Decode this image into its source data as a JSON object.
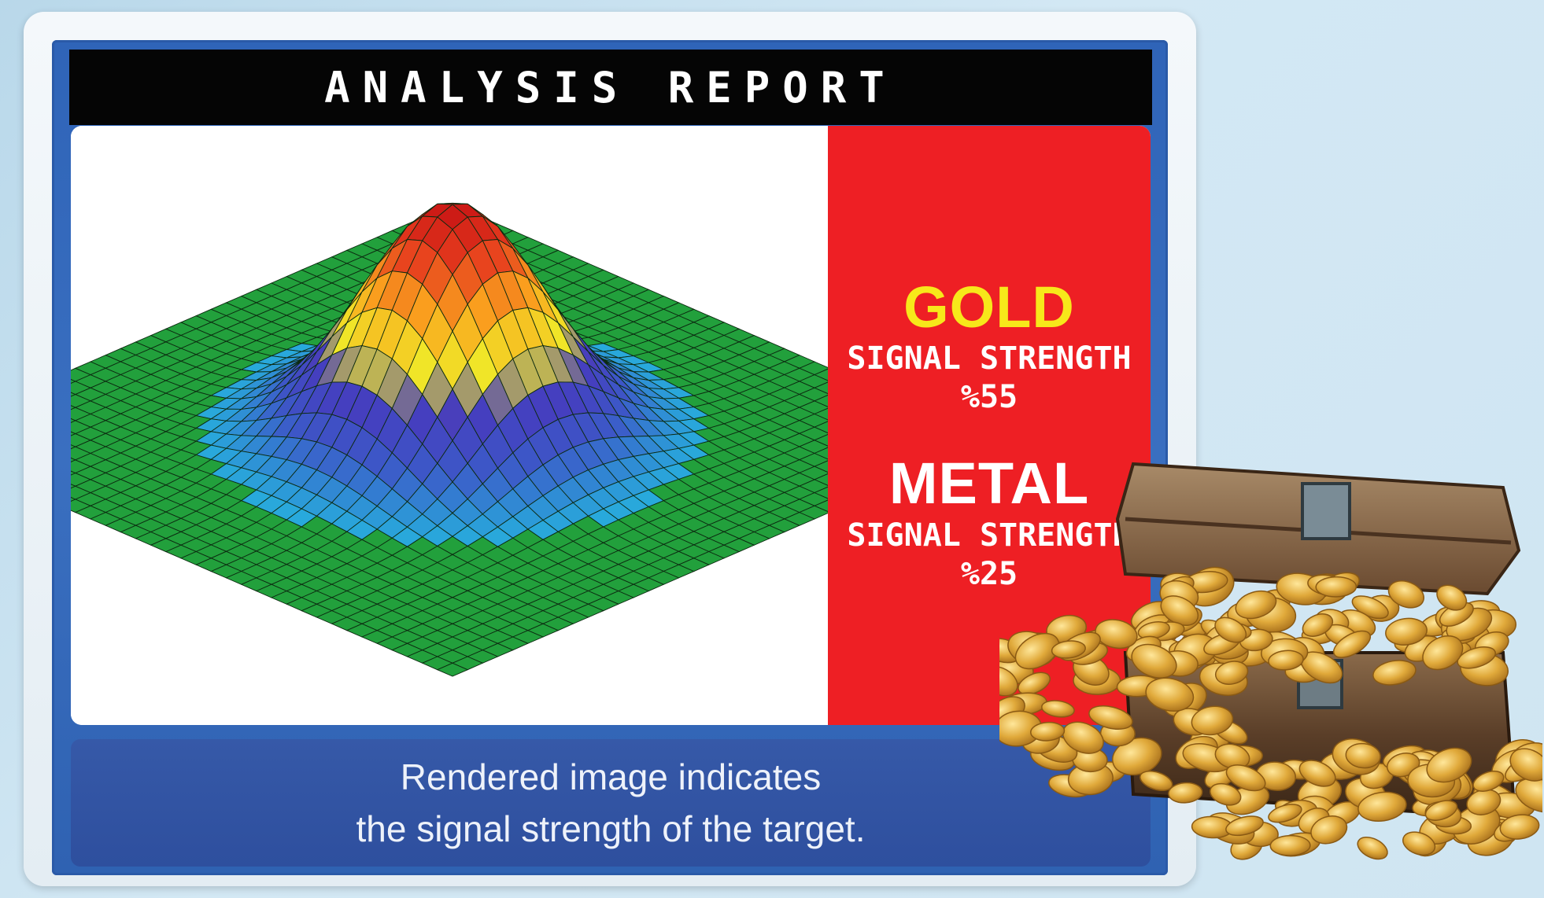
{
  "report": {
    "title": "ANALYSIS REPORT"
  },
  "readout": {
    "gold": {
      "name": "GOLD",
      "signal_label": "SIGNAL STRENGTH",
      "signal_value": "%55"
    },
    "metal": {
      "name": "METAL",
      "signal_label": "SIGNAL STRENGTH",
      "signal_value": "%25"
    }
  },
  "caption": {
    "line1": "Rendered image indicates",
    "line2": "the signal strength of the target."
  },
  "colors": {
    "frame_blue": "#2f64b8",
    "title_bar": "#050505",
    "readout_red": "#ee1f24",
    "gold_text": "#f7e81a",
    "surface_base": "#1f9a3a"
  },
  "icons": {
    "surface_plot": "gaussian-peak-surface-icon",
    "treasure": "treasure-chest-icon"
  }
}
